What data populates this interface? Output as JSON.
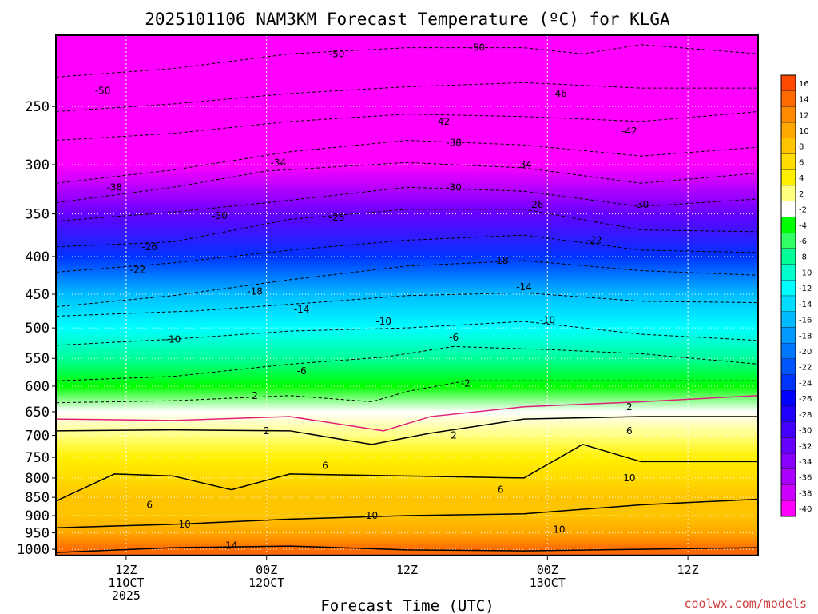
{
  "chart_data": {
    "type": "heatmap",
    "title": "2025101106 NAM3KM Forecast Temperature (ºC) for KLGA",
    "xlabel": "Forecast Time (UTC)",
    "ylabel": "",
    "x_ticks": [
      {
        "hour": 6,
        "lines": [
          "12Z",
          "11OCT",
          "2025"
        ]
      },
      {
        "hour": 18,
        "lines": [
          "00Z",
          "12OCT"
        ]
      },
      {
        "hour": 30,
        "lines": [
          "12Z"
        ]
      },
      {
        "hour": 42,
        "lines": [
          "00Z",
          "13OCT"
        ]
      },
      {
        "hour": 54,
        "lines": [
          "12Z"
        ]
      }
    ],
    "xlim": [
      0,
      60
    ],
    "y_ticks": [
      250,
      300,
      350,
      400,
      450,
      500,
      550,
      600,
      650,
      700,
      750,
      800,
      850,
      900,
      950,
      1000
    ],
    "ylim": [
      200,
      1020
    ],
    "grid": true,
    "colorbar": {
      "labels": [
        "16",
        "14",
        "12",
        "10",
        "8",
        "6",
        "4",
        "2",
        "-2",
        "-4",
        "-6",
        "-8",
        "-10",
        "-12",
        "-14",
        "-16",
        "-18",
        "-20",
        "-22",
        "-24",
        "-26",
        "-28",
        "-30",
        "-32",
        "-34",
        "-36",
        "-38",
        "-40"
      ],
      "colors": [
        "#ff4a00",
        "#ff6a00",
        "#ff8a00",
        "#ffa800",
        "#ffc400",
        "#ffdc00",
        "#fff000",
        "#ffff80",
        "#ffffff",
        "#00ff00",
        "#33ff66",
        "#00ff99",
        "#00ffcc",
        "#00ffff",
        "#00ddff",
        "#00bbff",
        "#0099ff",
        "#0077ff",
        "#0055ff",
        "#0033ff",
        "#0000ff",
        "#2200ff",
        "#4400ff",
        "#6600ff",
        "#8800ff",
        "#aa00ff",
        "#cc00ff",
        "#ff00ff"
      ]
    },
    "ground_color": "#b0502a",
    "temperature_bands": [
      {
        "p": 200,
        "t": -54
      },
      {
        "p": 250,
        "t": -48
      },
      {
        "p": 300,
        "t": -40
      },
      {
        "p": 350,
        "t": -31
      },
      {
        "p": 400,
        "t": -24
      },
      {
        "p": 450,
        "t": -16
      },
      {
        "p": 500,
        "t": -11
      },
      {
        "p": 550,
        "t": -7
      },
      {
        "p": 600,
        "t": -4
      },
      {
        "p": 650,
        "t": 0
      },
      {
        "p": 700,
        "t": 2
      },
      {
        "p": 750,
        "t": 4
      },
      {
        "p": 800,
        "t": 6
      },
      {
        "p": 850,
        "t": 8
      },
      {
        "p": 900,
        "t": 9
      },
      {
        "p": 950,
        "t": 11
      },
      {
        "p": 1000,
        "t": 14
      }
    ],
    "contours": [
      {
        "value": -50,
        "color": "#000",
        "dash": true,
        "points": [
          [
            0,
            228
          ],
          [
            10,
            222
          ],
          [
            20,
            212
          ],
          [
            30,
            208
          ],
          [
            40,
            208
          ],
          [
            45,
            212
          ],
          [
            50,
            206
          ],
          [
            60,
            212
          ]
        ],
        "labels": [
          [
            4,
            238
          ],
          [
            24,
            212
          ],
          [
            36,
            208
          ]
        ]
      },
      {
        "value": -46,
        "color": "#000",
        "dash": true,
        "points": [
          [
            0,
            254
          ],
          [
            10,
            248
          ],
          [
            20,
            240
          ],
          [
            30,
            235
          ],
          [
            40,
            232
          ],
          [
            50,
            236
          ],
          [
            60,
            236
          ]
        ],
        "labels": [
          [
            43,
            240
          ]
        ]
      },
      {
        "value": -42,
        "color": "#000",
        "dash": true,
        "points": [
          [
            0,
            278
          ],
          [
            10,
            272
          ],
          [
            20,
            262
          ],
          [
            30,
            256
          ],
          [
            40,
            258
          ],
          [
            50,
            262
          ],
          [
            60,
            254
          ]
        ],
        "labels": [
          [
            33,
            262
          ],
          [
            49,
            270
          ]
        ]
      },
      {
        "value": -38,
        "color": "#000",
        "dash": true,
        "points": [
          [
            0,
            318
          ],
          [
            10,
            305
          ],
          [
            20,
            288
          ],
          [
            30,
            278
          ],
          [
            40,
            282
          ],
          [
            50,
            292
          ],
          [
            60,
            284
          ]
        ],
        "labels": [
          [
            5,
            322
          ],
          [
            34,
            280
          ]
        ]
      },
      {
        "value": -34,
        "color": "#000",
        "dash": true,
        "points": [
          [
            0,
            338
          ],
          [
            10,
            322
          ],
          [
            18,
            306
          ],
          [
            30,
            298
          ],
          [
            40,
            303
          ],
          [
            50,
            318
          ],
          [
            60,
            308
          ]
        ],
        "labels": [
          [
            19,
            298
          ],
          [
            40,
            300
          ]
        ]
      },
      {
        "value": -30,
        "color": "#000",
        "dash": true,
        "points": [
          [
            0,
            358
          ],
          [
            10,
            348
          ],
          [
            18,
            338
          ],
          [
            30,
            322
          ],
          [
            40,
            326
          ],
          [
            50,
            342
          ],
          [
            60,
            334
          ]
        ],
        "labels": [
          [
            14,
            352
          ],
          [
            34,
            322
          ],
          [
            50,
            340
          ]
        ]
      },
      {
        "value": -26,
        "color": "#000",
        "dash": true,
        "points": [
          [
            0,
            388
          ],
          [
            10,
            382
          ],
          [
            20,
            356
          ],
          [
            30,
            345
          ],
          [
            40,
            345
          ],
          [
            50,
            368
          ],
          [
            60,
            370
          ]
        ],
        "labels": [
          [
            8,
            388
          ],
          [
            24,
            354
          ],
          [
            41,
            340
          ]
        ]
      },
      {
        "value": -22,
        "color": "#000",
        "dash": true,
        "points": [
          [
            0,
            420
          ],
          [
            10,
            408
          ],
          [
            20,
            392
          ],
          [
            30,
            380
          ],
          [
            40,
            374
          ],
          [
            50,
            392
          ],
          [
            60,
            395
          ]
        ],
        "labels": [
          [
            7,
            417
          ],
          [
            46,
            380
          ]
        ]
      },
      {
        "value": -18,
        "color": "#000",
        "dash": true,
        "points": [
          [
            0,
            468
          ],
          [
            10,
            452
          ],
          [
            20,
            430
          ],
          [
            30,
            412
          ],
          [
            40,
            405
          ],
          [
            50,
            418
          ],
          [
            60,
            424
          ]
        ],
        "labels": [
          [
            17,
            446
          ],
          [
            38,
            405
          ]
        ]
      },
      {
        "value": -14,
        "color": "#000",
        "dash": true,
        "points": [
          [
            0,
            482
          ],
          [
            12,
            474
          ],
          [
            22,
            462
          ],
          [
            30,
            452
          ],
          [
            40,
            448
          ],
          [
            50,
            460
          ],
          [
            60,
            462
          ]
        ],
        "labels": [
          [
            21,
            472
          ],
          [
            40,
            440
          ]
        ]
      },
      {
        "value": -10,
        "color": "#000",
        "dash": true,
        "points": [
          [
            0,
            528
          ],
          [
            10,
            518
          ],
          [
            20,
            505
          ],
          [
            30,
            500
          ],
          [
            40,
            490
          ],
          [
            50,
            510
          ],
          [
            60,
            520
          ]
        ],
        "labels": [
          [
            10,
            518
          ],
          [
            28,
            490
          ],
          [
            42,
            488
          ]
        ]
      },
      {
        "value": -6,
        "color": "#000",
        "dash": true,
        "points": [
          [
            0,
            590
          ],
          [
            10,
            582
          ],
          [
            20,
            560
          ],
          [
            28,
            548
          ],
          [
            34,
            530
          ],
          [
            42,
            535
          ],
          [
            50,
            542
          ],
          [
            60,
            560
          ]
        ],
        "labels": [
          [
            21,
            572
          ],
          [
            34,
            515
          ]
        ]
      },
      {
        "value": -2,
        "color": "#000",
        "dash": true,
        "points": [
          [
            0,
            632
          ],
          [
            10,
            628
          ],
          [
            20,
            618
          ],
          [
            27,
            630
          ],
          [
            30,
            610
          ],
          [
            35,
            590
          ],
          [
            45,
            590
          ],
          [
            60,
            590
          ]
        ],
        "labels": [
          [
            35,
            595
          ]
        ]
      },
      {
        "value": 0,
        "color": "#e0207a",
        "dash": false,
        "points": [
          [
            0,
            665
          ],
          [
            10,
            668
          ],
          [
            20,
            660
          ],
          [
            28,
            690
          ],
          [
            32,
            660
          ],
          [
            40,
            640
          ],
          [
            50,
            630
          ],
          [
            60,
            618
          ]
        ],
        "labels": []
      },
      {
        "value": 2,
        "color": "#000",
        "dash": false,
        "points": [
          [
            0,
            690
          ],
          [
            10,
            688
          ],
          [
            20,
            690
          ],
          [
            27,
            720
          ],
          [
            32,
            695
          ],
          [
            40,
            665
          ],
          [
            50,
            660
          ],
          [
            60,
            660
          ]
        ],
        "labels": [
          [
            17,
            618
          ],
          [
            18,
            690
          ],
          [
            34,
            700
          ],
          [
            49,
            640
          ]
        ]
      },
      {
        "value": 6,
        "color": "#000",
        "dash": false,
        "points": [
          [
            0,
            860
          ],
          [
            5,
            790
          ],
          [
            10,
            795
          ],
          [
            15,
            830
          ],
          [
            20,
            790
          ],
          [
            30,
            795
          ],
          [
            40,
            800
          ],
          [
            45,
            720
          ],
          [
            50,
            760
          ],
          [
            60,
            760
          ]
        ],
        "labels": [
          [
            8,
            870
          ],
          [
            23,
            770
          ],
          [
            38,
            830
          ],
          [
            49,
            690
          ]
        ]
      },
      {
        "value": 10,
        "color": "#000",
        "dash": false,
        "points": [
          [
            0,
            935
          ],
          [
            10,
            925
          ],
          [
            20,
            910
          ],
          [
            30,
            900
          ],
          [
            40,
            895
          ],
          [
            50,
            870
          ],
          [
            60,
            855
          ]
        ],
        "labels": [
          [
            11,
            925
          ],
          [
            27,
            900
          ],
          [
            43,
            940
          ],
          [
            49,
            800
          ]
        ]
      },
      {
        "value": 14,
        "color": "#000",
        "dash": false,
        "points": [
          [
            0,
            1010
          ],
          [
            10,
            995
          ],
          [
            20,
            990
          ],
          [
            30,
            1002
          ],
          [
            40,
            1005
          ],
          [
            50,
            1000
          ],
          [
            60,
            995
          ]
        ],
        "labels": [
          [
            15,
            988
          ]
        ]
      }
    ]
  },
  "credit": "coolwx.com/models"
}
